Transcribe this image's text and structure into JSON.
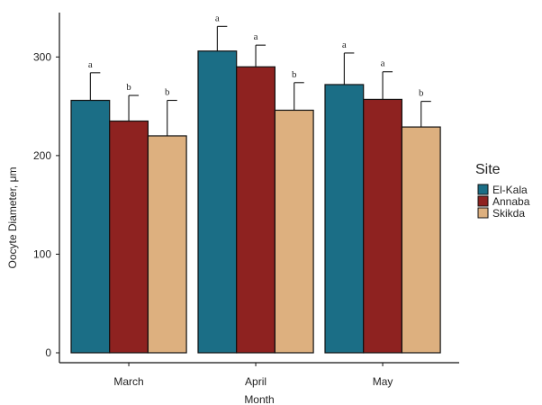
{
  "chart_data": {
    "type": "bar",
    "categories": [
      "March",
      "April",
      "May"
    ],
    "series": [
      {
        "name": "El-Kala",
        "color": "#1B6E86",
        "values": [
          256,
          306,
          272
        ],
        "errors": [
          28,
          25,
          32
        ],
        "labels": [
          "a",
          "a",
          "a"
        ]
      },
      {
        "name": "Annaba",
        "color": "#8E2220",
        "values": [
          235,
          290,
          257
        ],
        "errors": [
          26,
          22,
          28
        ],
        "labels": [
          "b",
          "a",
          "a"
        ]
      },
      {
        "name": "Skikda",
        "color": "#DDB07F",
        "values": [
          220,
          246,
          229
        ],
        "errors": [
          36,
          28,
          26
        ],
        "labels": [
          "b",
          "b",
          "b"
        ]
      }
    ],
    "ylabel": "Oocyte Diameter, μm",
    "xlabel": "Month",
    "ylim": [
      0,
      345
    ],
    "yticks": [
      0,
      100,
      200,
      300
    ],
    "legend": {
      "title": "Site",
      "position": "right"
    },
    "grid": false
  }
}
